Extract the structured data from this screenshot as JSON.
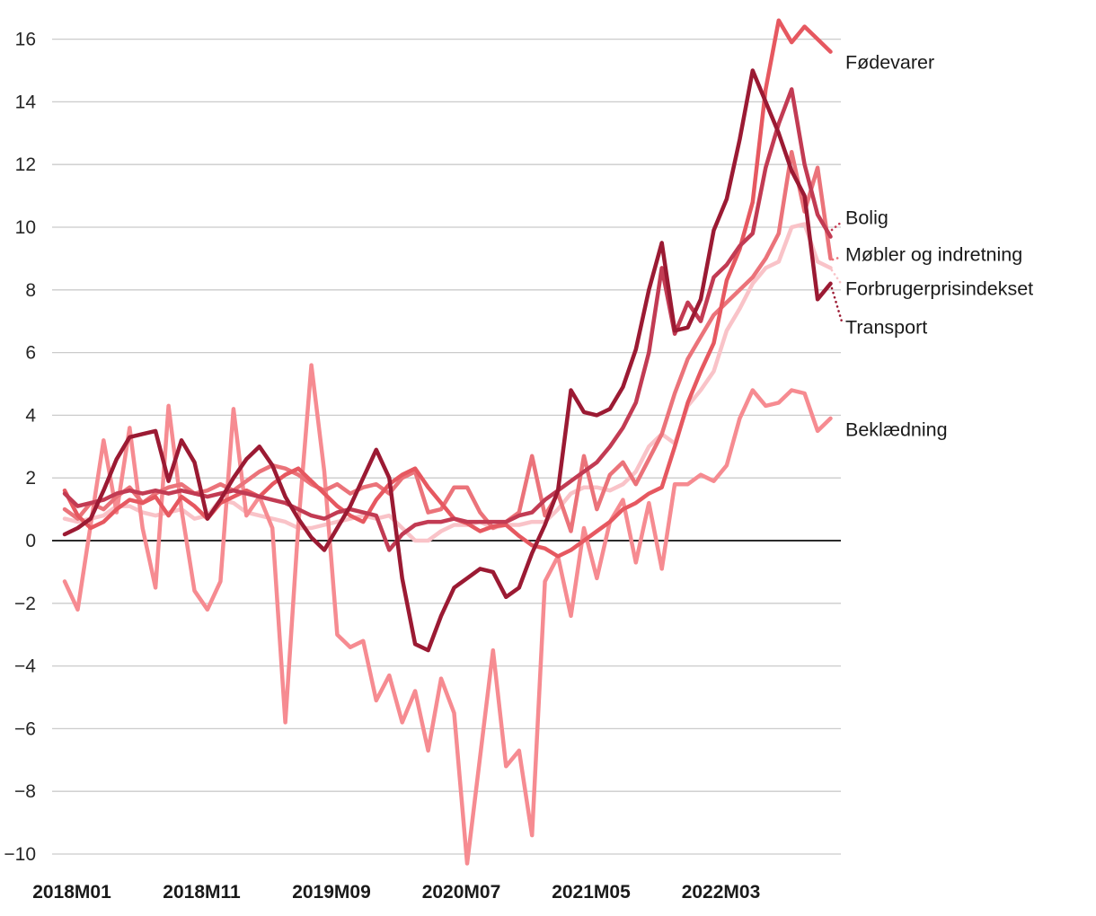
{
  "chart_data": {
    "type": "line",
    "title": "",
    "xlabel": "",
    "ylabel": "",
    "x_start": "2018M01",
    "x_end": "2022M12",
    "x_frequency": "monthly",
    "x_tick_labels": [
      "2018M01",
      "2018M11",
      "2019M09",
      "2020M07",
      "2021M05",
      "2022M03"
    ],
    "x_months": [
      "2018M01",
      "2018M02",
      "2018M03",
      "2018M04",
      "2018M05",
      "2018M06",
      "2018M07",
      "2018M08",
      "2018M09",
      "2018M10",
      "2018M11",
      "2018M12",
      "2019M01",
      "2019M02",
      "2019M03",
      "2019M04",
      "2019M05",
      "2019M06",
      "2019M07",
      "2019M08",
      "2019M09",
      "2019M10",
      "2019M11",
      "2019M12",
      "2020M01",
      "2020M02",
      "2020M03",
      "2020M04",
      "2020M05",
      "2020M06",
      "2020M07",
      "2020M08",
      "2020M09",
      "2020M10",
      "2020M11",
      "2020M12",
      "2021M01",
      "2021M02",
      "2021M03",
      "2021M04",
      "2021M05",
      "2021M06",
      "2021M07",
      "2021M08",
      "2021M09",
      "2021M10",
      "2021M11",
      "2021M12",
      "2022M01",
      "2022M02",
      "2022M03",
      "2022M04",
      "2022M05",
      "2022M06",
      "2022M07",
      "2022M08",
      "2022M09",
      "2022M10",
      "2022M11",
      "2022M12"
    ],
    "y_axis": {
      "min": -10,
      "max": 16,
      "step": 2,
      "tick_labels": [
        "16",
        "14",
        "12",
        "10",
        "8",
        "6",
        "4",
        "2",
        "0",
        "−2",
        "−4",
        "−6",
        "−8",
        "−10"
      ]
    },
    "grid": "horizontal",
    "zero_line": true,
    "legend_position": "right-annotations",
    "unit": "percent year-on-year",
    "series": [
      {
        "name": "Fødevarer",
        "color": "#E65860",
        "values": [
          1.6,
          0.8,
          0.4,
          0.6,
          1.0,
          1.3,
          1.2,
          1.4,
          0.8,
          1.4,
          1.1,
          0.7,
          1.2,
          1.4,
          1.6,
          1.4,
          1.8,
          2.1,
          2.3,
          1.9,
          1.5,
          1.1,
          0.8,
          0.6,
          1.3,
          1.8,
          2.1,
          2.3,
          1.7,
          1.2,
          0.7,
          0.55,
          0.3,
          0.45,
          0.5,
          0.15,
          -0.15,
          -0.25,
          -0.5,
          -0.3,
          0.0,
          0.3,
          0.6,
          1.0,
          1.2,
          1.5,
          1.7,
          3.0,
          4.4,
          5.4,
          6.3,
          8.3,
          9.3,
          10.8,
          14.4,
          16.6,
          15.9,
          16.4,
          16.0,
          15.6
        ]
      },
      {
        "name": "Bolig",
        "color": "#C23B53",
        "values": [
          1.5,
          1.1,
          1.2,
          1.3,
          1.5,
          1.6,
          1.5,
          1.6,
          1.5,
          1.6,
          1.5,
          1.4,
          1.5,
          1.6,
          1.5,
          1.4,
          1.3,
          1.2,
          1.0,
          0.8,
          0.7,
          0.9,
          1.0,
          0.9,
          0.8,
          -0.3,
          0.2,
          0.5,
          0.6,
          0.6,
          0.7,
          0.6,
          0.6,
          0.6,
          0.6,
          0.8,
          0.9,
          1.3,
          1.6,
          1.9,
          2.2,
          2.5,
          3.0,
          3.6,
          4.4,
          6.0,
          8.7,
          6.6,
          7.6,
          7.0,
          8.4,
          8.8,
          9.4,
          9.8,
          11.9,
          13.3,
          14.4,
          12.0,
          10.4,
          9.7
        ]
      },
      {
        "name": "Møbler og indretning",
        "color": "#EB737A",
        "values": [
          1.0,
          0.7,
          1.2,
          1.0,
          1.4,
          1.7,
          1.2,
          1.5,
          1.7,
          1.8,
          1.5,
          1.6,
          1.8,
          1.6,
          1.9,
          2.2,
          2.4,
          2.3,
          2.1,
          1.8,
          1.6,
          1.8,
          1.5,
          1.7,
          1.8,
          1.5,
          2.0,
          2.2,
          0.9,
          1.0,
          1.7,
          1.7,
          0.9,
          0.4,
          0.6,
          0.9,
          2.7,
          0.8,
          1.5,
          0.3,
          2.7,
          1.0,
          2.1,
          2.5,
          1.8,
          2.6,
          3.4,
          4.7,
          5.8,
          6.5,
          7.2,
          7.6,
          8.0,
          8.4,
          9.0,
          9.8,
          12.4,
          10.5,
          11.9,
          9.0
        ]
      },
      {
        "name": "Forbrugerprisindekset",
        "color": "#F9C3C8",
        "values": [
          0.7,
          0.6,
          0.7,
          0.8,
          1.1,
          1.1,
          0.9,
          0.8,
          0.9,
          1.0,
          0.7,
          0.8,
          1.3,
          1.2,
          0.9,
          0.8,
          0.7,
          0.6,
          0.4,
          0.4,
          0.5,
          0.6,
          0.7,
          0.8,
          0.7,
          0.8,
          0.4,
          0.0,
          0.0,
          0.3,
          0.5,
          0.5,
          0.6,
          0.4,
          0.5,
          0.5,
          0.6,
          0.6,
          1.0,
          1.5,
          1.7,
          1.7,
          1.6,
          1.8,
          2.2,
          3.0,
          3.4,
          3.1,
          4.3,
          4.8,
          5.4,
          6.7,
          7.4,
          8.2,
          8.7,
          8.9,
          10.0,
          10.1,
          8.9,
          8.7
        ]
      },
      {
        "name": "Transport",
        "color": "#9B1A33",
        "values": [
          0.2,
          0.4,
          0.7,
          1.6,
          2.6,
          3.3,
          3.4,
          3.5,
          1.9,
          3.2,
          2.5,
          0.7,
          1.3,
          2.0,
          2.6,
          3.0,
          2.4,
          1.4,
          0.7,
          0.1,
          -0.3,
          0.4,
          1.1,
          2.0,
          2.9,
          2.0,
          -1.2,
          -3.3,
          -3.5,
          -2.4,
          -1.5,
          -1.2,
          -0.9,
          -1.0,
          -1.8,
          -1.5,
          -0.4,
          0.5,
          1.6,
          4.8,
          4.1,
          4.0,
          4.2,
          4.9,
          6.1,
          8.0,
          9.5,
          6.7,
          6.8,
          7.7,
          9.9,
          10.9,
          12.8,
          15.0,
          14.0,
          13.0,
          11.8,
          11.0,
          7.7,
          8.2
        ]
      },
      {
        "name": "Beklædning",
        "color": "#F68B91",
        "values": [
          -1.3,
          -2.2,
          0.5,
          3.2,
          0.9,
          3.6,
          0.4,
          -1.5,
          4.3,
          1.0,
          -1.6,
          -2.2,
          -1.3,
          4.2,
          0.8,
          1.4,
          0.4,
          -5.8,
          0.5,
          5.6,
          2.2,
          -3.0,
          -3.4,
          -3.2,
          -5.1,
          -4.3,
          -5.8,
          -4.8,
          -6.7,
          -4.4,
          -5.5,
          -10.3,
          -6.9,
          -3.5,
          -7.2,
          -6.7,
          -9.4,
          -1.3,
          -0.5,
          -2.4,
          0.4,
          -1.2,
          0.6,
          1.3,
          -0.7,
          1.2,
          -0.9,
          1.8,
          1.8,
          2.1,
          1.9,
          2.4,
          3.9,
          4.8,
          4.3,
          4.4,
          4.8,
          4.7,
          3.5,
          3.9
        ]
      }
    ],
    "colors": {
      "grid": "#CBCBCB",
      "zero_line": "#2B2B2B",
      "text": "#1A1A1A"
    }
  }
}
